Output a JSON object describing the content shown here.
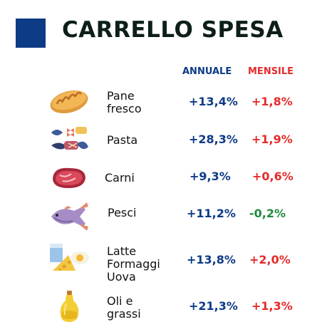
{
  "title": "CARRELLO SPESA",
  "chart_data": {
    "type": "table",
    "columns": [
      "ANNUALE",
      "MENSILE"
    ],
    "rows": [
      {
        "category": "Pane\nfresco",
        "icon": "bread-icon",
        "annuale": "+13,4%",
        "mensile": "+1,8%",
        "mensile_trend": "up"
      },
      {
        "category": "Pasta",
        "icon": "pasta-icon",
        "annuale": "+28,3%",
        "mensile": "+1,9%",
        "mensile_trend": "up"
      },
      {
        "category": "Carni",
        "icon": "meat-icon",
        "annuale": "+9,3%",
        "mensile": "+0,6%",
        "mensile_trend": "up"
      },
      {
        "category": "Pesci",
        "icon": "fish-icon",
        "annuale": "+11,2%",
        "mensile": "-0,2%",
        "mensile_trend": "down"
      },
      {
        "category": "Latte\nFormaggi\nUova",
        "icon": "dairy-icon",
        "annuale": "+13,8%",
        "mensile": "+2,0%",
        "mensile_trend": "up"
      },
      {
        "category": "Oli e\ngrassi",
        "icon": "oil-bottle-icon",
        "annuale": "+21,3%",
        "mensile": "+1,3%",
        "mensile_trend": "up"
      }
    ]
  },
  "colors": {
    "accent_blue": "#0d3b86",
    "increase_red": "#e52b2b",
    "decrease_green": "#1e8a3c"
  }
}
